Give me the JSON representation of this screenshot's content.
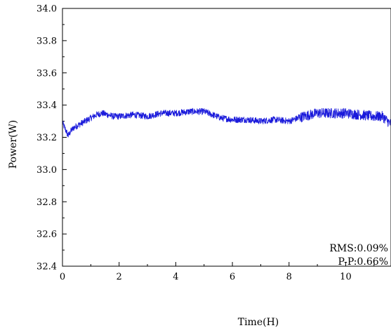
{
  "chart_data": {
    "type": "line",
    "xlabel": "Time(H)",
    "ylabel": "Power(W)",
    "xlim": [
      0,
      11.6
    ],
    "ylim": [
      32.4,
      34.0
    ],
    "x_ticks": [
      0,
      2,
      4,
      6,
      8,
      10
    ],
    "y_ticks": [
      32.4,
      32.6,
      32.8,
      33.0,
      33.2,
      33.4,
      33.6,
      33.8,
      34.0
    ],
    "x_tick_labels": [
      "0",
      "2",
      "4",
      "6",
      "8",
      "10"
    ],
    "y_tick_labels": [
      "32.4",
      "32.6",
      "32.8",
      "33.0",
      "33.2",
      "33.4",
      "33.6",
      "33.8",
      "34.0"
    ],
    "grid": false,
    "series": [
      {
        "color": "#1a1adb",
        "x": [
          0,
          0.1,
          0.2,
          0.3,
          0.4,
          0.6,
          0.8,
          1.0,
          1.2,
          1.4,
          1.6,
          1.8,
          2.0,
          2.5,
          3.0,
          3.5,
          4.0,
          4.5,
          5.0,
          5.3,
          5.6,
          6.0,
          6.5,
          7.0,
          7.5,
          8.0,
          8.5,
          9.0,
          9.5,
          10.0,
          10.5,
          11.0,
          11.3,
          11.6
        ],
        "y": [
          33.29,
          33.25,
          33.21,
          33.24,
          33.26,
          33.28,
          33.3,
          33.32,
          33.34,
          33.35,
          33.34,
          33.33,
          33.33,
          33.34,
          33.33,
          33.35,
          33.35,
          33.36,
          33.36,
          33.34,
          33.32,
          33.31,
          33.31,
          33.3,
          33.31,
          33.3,
          33.33,
          33.35,
          33.35,
          33.35,
          33.34,
          33.33,
          33.33,
          33.28
        ]
      }
    ],
    "annotations": [
      "RMS:0.09%",
      "P-P:0.66%"
    ]
  }
}
